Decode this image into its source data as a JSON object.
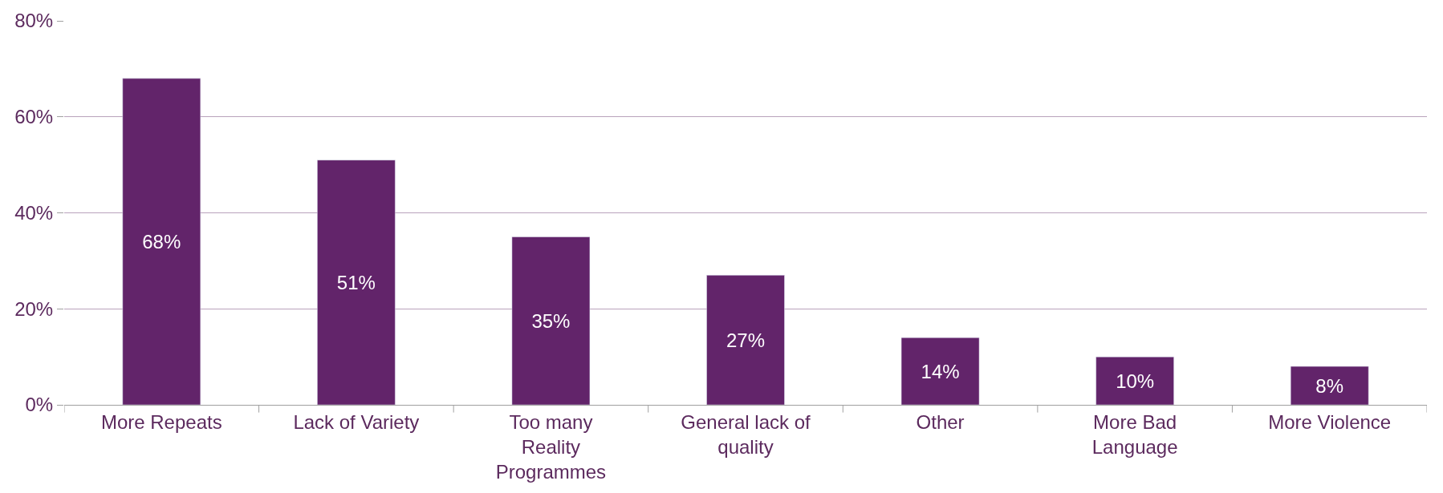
{
  "chart_data": {
    "type": "bar",
    "categories": [
      "More Repeats",
      "Lack of Variety",
      "Too many\nReality\nProgrammes",
      "General lack of\nquality",
      "Other",
      "More Bad\nLanguage",
      "More Violence"
    ],
    "values": [
      68,
      51,
      35,
      27,
      14,
      10,
      8
    ],
    "value_labels": [
      "68%",
      "51%",
      "35%",
      "27%",
      "14%",
      "10%",
      "8%"
    ],
    "color": "#62246a",
    "ylim": [
      0,
      80
    ],
    "yticks": [
      {
        "value": 0,
        "label": "0%"
      },
      {
        "value": 20,
        "label": "20%"
      },
      {
        "value": 40,
        "label": "40%"
      },
      {
        "value": 60,
        "label": "60%"
      },
      {
        "value": 80,
        "label": "80%"
      }
    ],
    "grid": "y",
    "legend": false
  }
}
